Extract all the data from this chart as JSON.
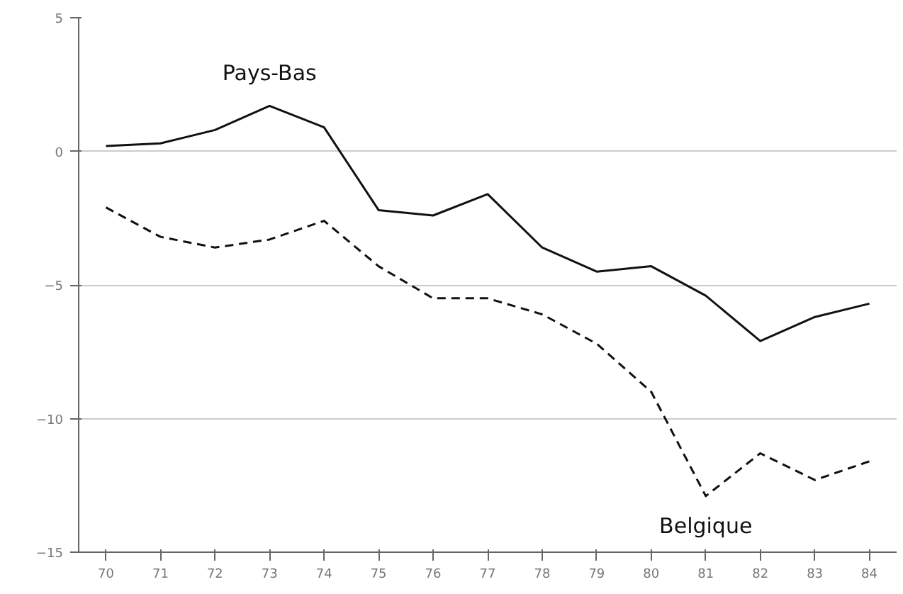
{
  "chart_data": {
    "type": "line",
    "categories": [
      "70",
      "71",
      "72",
      "73",
      "74",
      "75",
      "76",
      "77",
      "78",
      "79",
      "80",
      "81",
      "82",
      "83",
      "84"
    ],
    "series": [
      {
        "name": "Pays-Bas",
        "color": "#111111",
        "line_style": "solid",
        "values": [
          0.2,
          0.3,
          0.8,
          1.7,
          0.9,
          -2.2,
          -2.4,
          -1.6,
          -3.6,
          -4.5,
          -4.3,
          -5.4,
          -7.1,
          -6.2,
          -5.7
        ]
      },
      {
        "name": "Belgique",
        "color": "#111111",
        "line_style": "dashed",
        "values": [
          -2.1,
          -3.2,
          -3.6,
          -3.3,
          -2.6,
          -4.3,
          -5.5,
          -5.5,
          -6.1,
          -7.2,
          -9.0,
          -12.9,
          -11.3,
          -12.3,
          -11.6
        ]
      }
    ],
    "ylim": [
      -15,
      5
    ],
    "yticks": [
      -15,
      -10,
      -5,
      0,
      5
    ],
    "grid": "y",
    "legend": false
  }
}
